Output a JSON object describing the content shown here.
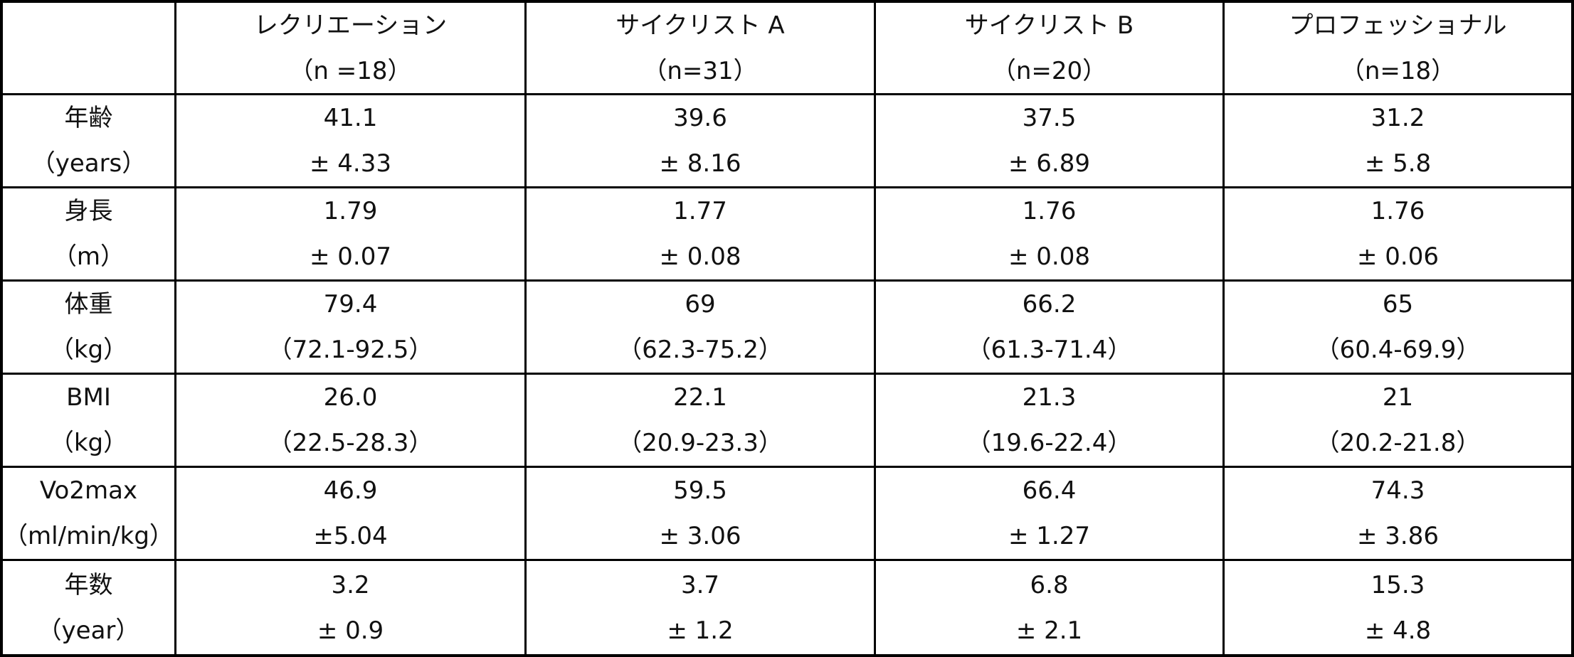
{
  "table": {
    "columns": [
      {
        "name": "レクリエーション",
        "n": "（n =18）"
      },
      {
        "name": "サイクリスト A",
        "n": "（n=31）"
      },
      {
        "name": "サイクリスト B",
        "n": "（n=20）"
      },
      {
        "name": "プロフェッショナル",
        "n": "（n=18）"
      }
    ],
    "rows": [
      {
        "label": "年齢",
        "unit": "（years）",
        "cells": [
          [
            "41.1",
            "± 4.33"
          ],
          [
            "39.6",
            "± 8.16"
          ],
          [
            "37.5",
            "± 6.89"
          ],
          [
            "31.2",
            "± 5.8"
          ]
        ]
      },
      {
        "label": "身長",
        "unit": "（m）",
        "cells": [
          [
            "1.79",
            "± 0.07"
          ],
          [
            "1.77",
            "± 0.08"
          ],
          [
            "1.76",
            "± 0.08"
          ],
          [
            "1.76",
            "± 0.06"
          ]
        ]
      },
      {
        "label": "体重",
        "unit": "（kg）",
        "cells": [
          [
            "79.4",
            "（72.1-92.5）"
          ],
          [
            "69",
            "（62.3-75.2）"
          ],
          [
            "66.2",
            "（61.3-71.4）"
          ],
          [
            "65",
            "（60.4-69.9）"
          ]
        ]
      },
      {
        "label": "BMI",
        "unit": "（kg）",
        "cells": [
          [
            "26.0",
            "（22.5-28.3）"
          ],
          [
            "22.1",
            "（20.9-23.3）"
          ],
          [
            "21.3",
            "（19.6-22.4）"
          ],
          [
            "21",
            "（20.2-21.8）"
          ]
        ]
      },
      {
        "label": "Vo2max",
        "unit": "（ml/min/kg）",
        "cells": [
          [
            "46.9",
            "±5.04"
          ],
          [
            "59.5",
            "± 3.06"
          ],
          [
            "66.4",
            "± 1.27"
          ],
          [
            "74.3",
            "± 3.86"
          ]
        ]
      },
      {
        "label": "年数",
        "unit": "（year）",
        "cells": [
          [
            "3.2",
            "± 0.9"
          ],
          [
            "3.7",
            "± 1.2"
          ],
          [
            "6.8",
            "± 2.1"
          ],
          [
            "15.3",
            "± 4.8"
          ]
        ]
      }
    ]
  }
}
